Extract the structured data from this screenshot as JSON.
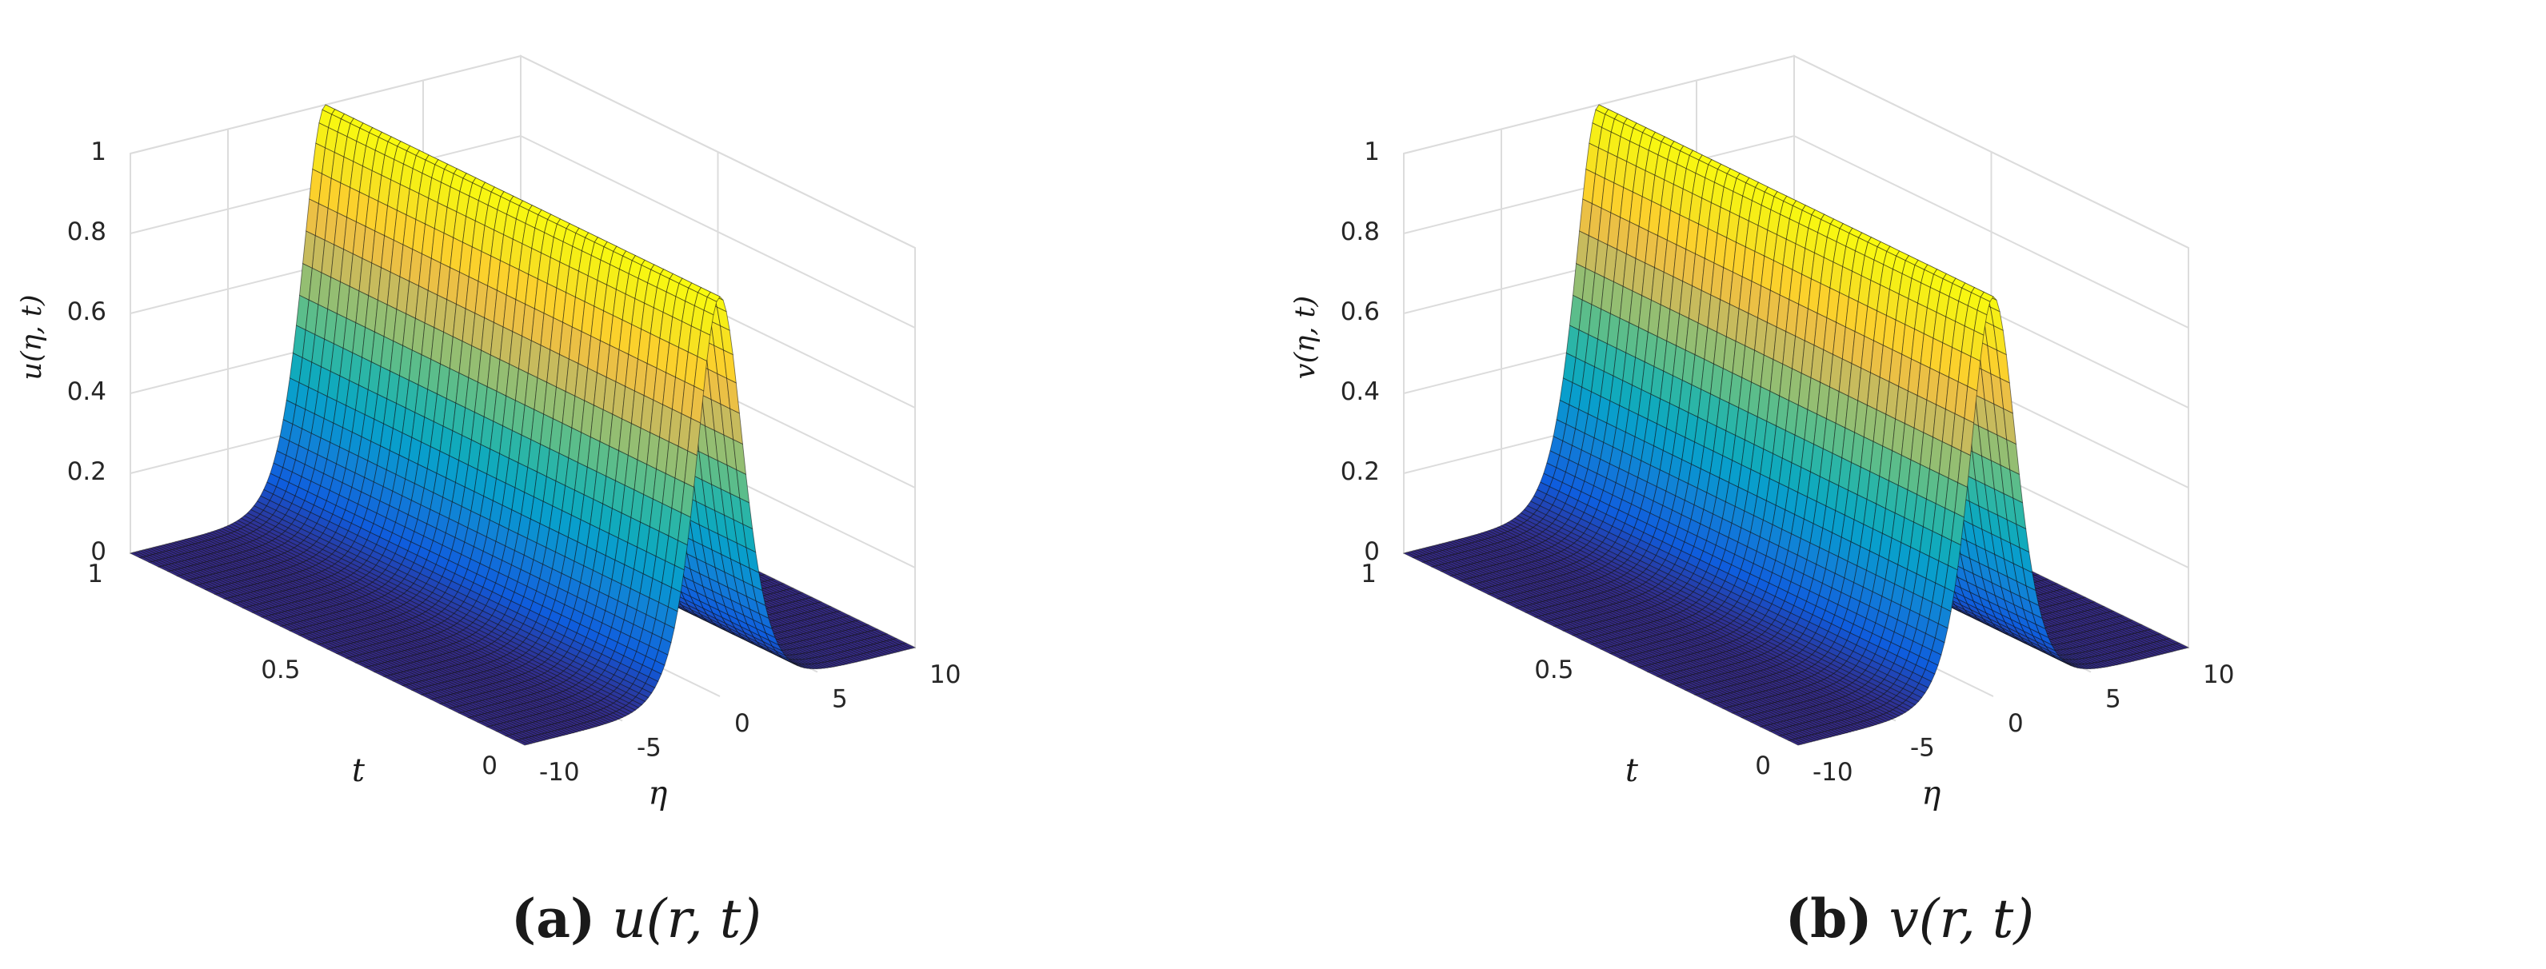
{
  "chart_data": [
    {
      "type": "surface",
      "caption_tag": "(a)",
      "caption_expr": "u(r, t)",
      "xlabel": "η",
      "ylabel": "t",
      "zlabel": "u(η, t)",
      "xlim": [
        -10,
        10
      ],
      "ylim": [
        0,
        1
      ],
      "zlim": [
        0,
        1
      ],
      "xticks": [
        "-10",
        "-5",
        "0",
        "5",
        "10"
      ],
      "yticks": [
        "0",
        "0.5",
        "1"
      ],
      "zticks": [
        "0",
        "0.2",
        "0.4",
        "0.6",
        "0.8",
        "1"
      ],
      "surface": "travelling pulse, peak ≈ 1 at η ≈ 0, decaying to 0 at |η| = 10, constant in t",
      "grid": true,
      "colormap": "parula"
    },
    {
      "type": "surface",
      "caption_tag": "(b)",
      "caption_expr": "v(r, t)",
      "xlabel": "η",
      "ylabel": "t",
      "zlabel": "v(η, t)",
      "xlim": [
        -10,
        10
      ],
      "ylim": [
        0,
        1
      ],
      "zlim": [
        0,
        1
      ],
      "xticks": [
        "-10",
        "-5",
        "0",
        "5",
        "10"
      ],
      "yticks": [
        "0",
        "0.5",
        "1"
      ],
      "zticks": [
        "0",
        "0.2",
        "0.4",
        "0.6",
        "0.8",
        "1"
      ],
      "surface": "travelling pulse, peak ≈ 1 at η ≈ 0, decaying to 0 at |η| = 10, constant in t",
      "grid": true,
      "colormap": "parula"
    }
  ]
}
